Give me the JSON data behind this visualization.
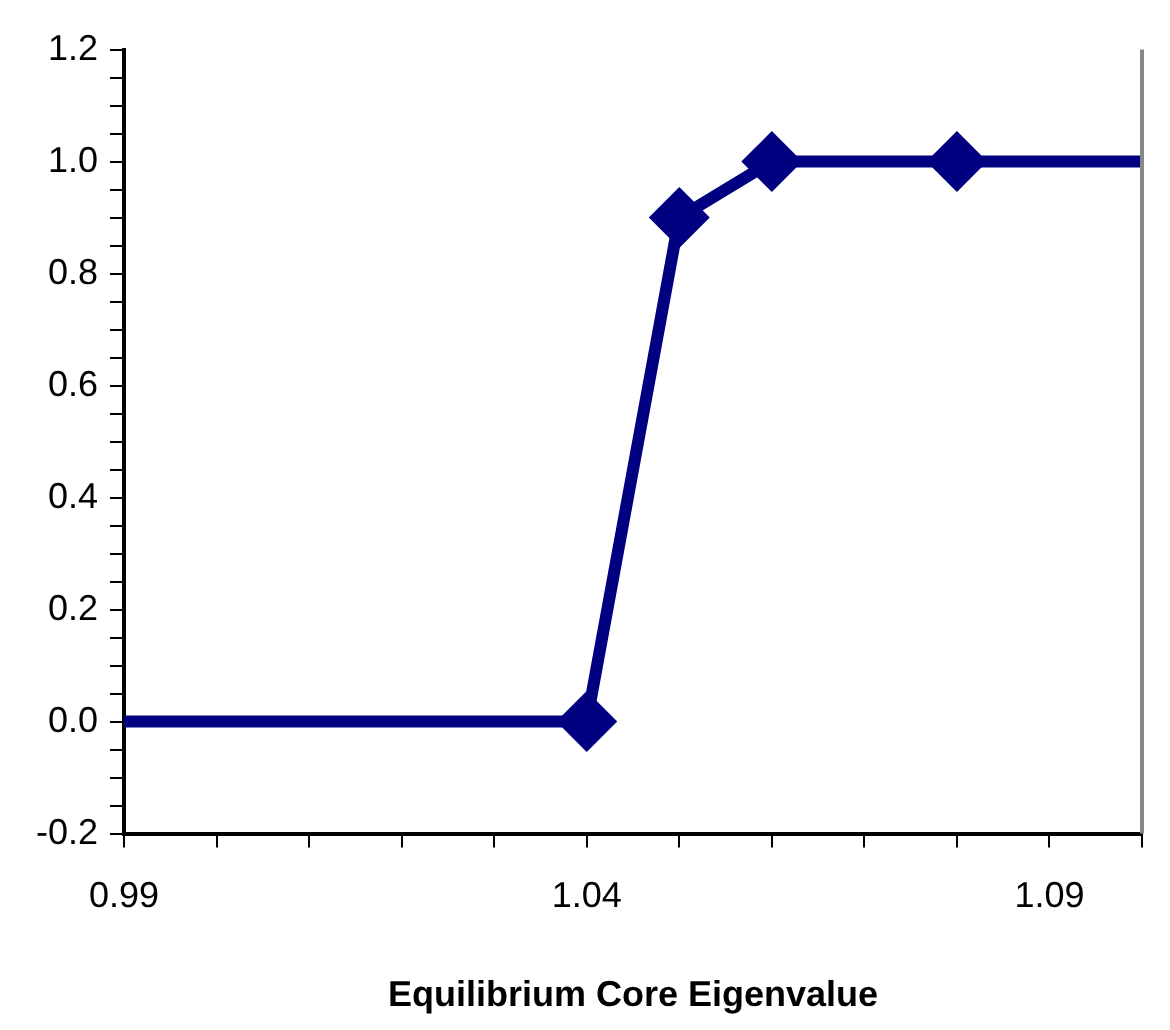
{
  "chart_data": {
    "type": "line",
    "xlabel": "Equilibrium Core Eigenvalue",
    "x": [
      0.99,
      1.04,
      1.05,
      1.06,
      1.08,
      1.1
    ],
    "series": [
      {
        "color": "#000080",
        "values": [
          0,
          0,
          0.9,
          1,
          1,
          1
        ]
      }
    ],
    "xlim": [
      0.99,
      1.1
    ],
    "xticks": [
      0.99,
      {
        "value": 1,
        "label": null
      },
      {
        "value": 1.01,
        "label": null
      },
      {
        "value": 1.02,
        "label": null
      },
      {
        "value": 1.03,
        "label": null
      },
      1.04,
      {
        "value": 1.05,
        "label": null
      },
      {
        "value": 1.06,
        "label": null
      },
      {
        "value": 1.07,
        "label": null
      },
      {
        "value": 1.08,
        "label": null
      },
      1.09,
      {
        "value": 1.1,
        "label": null
      }
    ],
    "ylim": [
      -0.2,
      1.2
    ],
    "yticks": [
      {
        "value": -0.2,
        "label": "-0.2"
      },
      {
        "value": -0.15,
        "label": null
      },
      {
        "value": -0.1,
        "label": null
      },
      {
        "value": -0.05,
        "label": null
      },
      {
        "value": 0,
        "label": "0.0"
      },
      {
        "value": 0.05,
        "label": null
      },
      {
        "value": 0.1,
        "label": null
      },
      {
        "value": 0.15,
        "label": null
      },
      {
        "value": 0.2,
        "label": "0.2"
      },
      {
        "value": 0.25,
        "label": null
      },
      {
        "value": 0.3,
        "label": null
      },
      {
        "value": 0.35,
        "label": null
      },
      {
        "value": 0.4,
        "label": "0.4"
      },
      {
        "value": 0.45,
        "label": null
      },
      {
        "value": 0.5,
        "label": null
      },
      {
        "value": 0.55,
        "label": null
      },
      {
        "value": 0.6,
        "label": "0.6"
      },
      {
        "value": 0.65,
        "label": null
      },
      {
        "value": 0.7,
        "label": null
      },
      {
        "value": 0.75,
        "label": null
      },
      {
        "value": 0.8,
        "label": "0.8"
      },
      {
        "value": 0.85,
        "label": null
      },
      {
        "value": 0.9,
        "label": null
      },
      {
        "value": 0.95,
        "label": null
      },
      {
        "value": 1,
        "label": "1.0"
      },
      {
        "value": 1.05,
        "label": null
      },
      {
        "value": 1.1,
        "label": null
      },
      {
        "value": 1.15,
        "label": null
      },
      {
        "value": 1.2,
        "label": "1.2"
      }
    ],
    "grid": false,
    "legend": false,
    "marker": "diamond",
    "line_style": "solid"
  }
}
